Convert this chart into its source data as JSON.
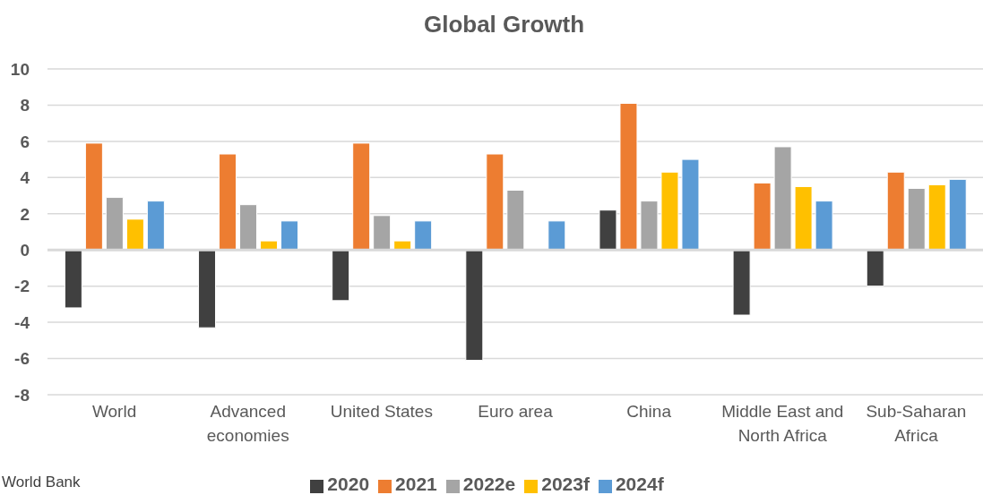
{
  "chart_data": {
    "type": "bar",
    "title": "Global Growth",
    "categories": [
      "World",
      "Advanced economies",
      "United States",
      "Euro area",
      "China",
      "Middle East and North Africa",
      "Sub-Saharan Africa"
    ],
    "series": [
      {
        "name": "2020",
        "color": "#404040",
        "values": [
          -3.2,
          -4.3,
          -2.8,
          -6.1,
          2.2,
          -3.6,
          -2.0
        ]
      },
      {
        "name": "2021",
        "color": "#ed7d31",
        "values": [
          5.9,
          5.3,
          5.9,
          5.3,
          8.1,
          3.7,
          4.3
        ]
      },
      {
        "name": "2022e",
        "color": "#a5a5a5",
        "values": [
          2.9,
          2.5,
          1.9,
          3.3,
          2.7,
          5.7,
          3.4
        ]
      },
      {
        "name": "2023f",
        "color": "#ffc000",
        "values": [
          1.7,
          0.5,
          0.5,
          0.0,
          4.3,
          3.5,
          3.6
        ]
      },
      {
        "name": "2024f",
        "color": "#5b9bd5",
        "values": [
          2.7,
          1.6,
          1.6,
          1.6,
          5.0,
          2.7,
          3.9
        ]
      }
    ],
    "ylim": [
      -8,
      10
    ],
    "yticks": [
      -8,
      -6,
      -4,
      -2,
      0,
      2,
      4,
      6,
      8,
      10
    ],
    "grid": "y",
    "legend": "bottom",
    "annotations": [
      "World Bank"
    ]
  }
}
